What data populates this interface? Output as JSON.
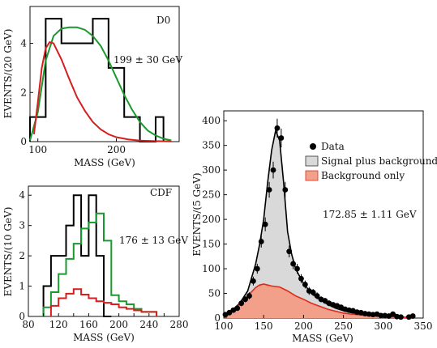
{
  "chart_data": [
    {
      "id": "d0",
      "type": "histogram",
      "panel_label": "D0",
      "annotation": "199 ± 30 GeV",
      "xlabel": "MASS (GeV)",
      "ylabel": "EVENTS/(20 GeV)",
      "xlim": [
        90,
        280
      ],
      "ylim": [
        0,
        5.5
      ],
      "xticks": [
        100,
        200
      ],
      "yticks": [
        0,
        2,
        4
      ],
      "series": [
        {
          "style": "histogram",
          "color": "#000000",
          "edges": [
            90,
            110,
            130,
            170,
            190,
            210,
            230,
            250,
            260
          ],
          "counts": [
            1,
            5,
            4,
            5,
            3,
            1,
            0,
            1
          ]
        },
        {
          "style": "curve",
          "color": "#1a9a2e",
          "x": [
            90,
            100,
            110,
            120,
            130,
            140,
            150,
            160,
            170,
            180,
            190,
            200,
            210,
            220,
            230,
            240,
            250,
            260,
            270
          ],
          "y": [
            0.05,
            1.2,
            3.3,
            4.3,
            4.6,
            4.65,
            4.65,
            4.55,
            4.3,
            3.9,
            3.3,
            2.6,
            1.9,
            1.3,
            0.8,
            0.45,
            0.25,
            0.12,
            0.05
          ]
        },
        {
          "style": "curve",
          "color": "#d51f1f",
          "x": [
            95,
            100,
            105,
            110,
            115,
            120,
            130,
            140,
            150,
            160,
            170,
            180,
            190,
            200,
            215,
            230,
            250,
            270
          ],
          "y": [
            0.3,
            1.6,
            3.0,
            3.8,
            4.05,
            4.0,
            3.35,
            2.55,
            1.8,
            1.25,
            0.8,
            0.5,
            0.3,
            0.18,
            0.09,
            0.04,
            0.02,
            0.01
          ]
        }
      ]
    },
    {
      "id": "cdf",
      "type": "histogram",
      "panel_label": "CDF",
      "annotation": "176 ± 13 GeV",
      "xlabel": "MASS (GeV)",
      "ylabel": "EVENTS/(10 GeV)",
      "xlim": [
        80,
        280
      ],
      "ylim": [
        0,
        4.3
      ],
      "xticks": [
        80,
        100,
        120,
        140,
        160,
        180,
        200,
        220,
        240,
        260,
        280
      ],
      "xtick_labels": [
        "80",
        "",
        "120",
        "",
        "160",
        "",
        "200",
        "",
        "240",
        "",
        "280"
      ],
      "yticks": [
        0,
        1,
        2,
        3,
        4
      ],
      "series": [
        {
          "style": "histogram",
          "color": "#000000",
          "edges": [
            100,
            110,
            120,
            130,
            140,
            150,
            160,
            170,
            180,
            190
          ],
          "counts": [
            1,
            2,
            2,
            3,
            4,
            2,
            4,
            2,
            0
          ]
        },
        {
          "style": "histogram",
          "color": "#1a9a2e",
          "edges": [
            100,
            110,
            120,
            130,
            140,
            150,
            160,
            170,
            180,
            190,
            200,
            210,
            220,
            230,
            250
          ],
          "counts": [
            0.3,
            0.8,
            1.4,
            1.9,
            2.4,
            2.9,
            3.1,
            3.4,
            2.5,
            0.7,
            0.5,
            0.4,
            0.25,
            0.15
          ]
        },
        {
          "style": "histogram",
          "color": "#d51f1f",
          "edges": [
            110,
            120,
            130,
            140,
            150,
            160,
            170,
            180,
            190,
            200,
            210,
            220,
            230,
            250
          ],
          "counts": [
            0.35,
            0.6,
            0.75,
            0.9,
            0.72,
            0.6,
            0.5,
            0.45,
            0.4,
            0.3,
            0.25,
            0.2,
            0.15
          ]
        }
      ]
    },
    {
      "id": "combined",
      "type": "scatter",
      "annotation": "172.85 ± 1.11 GeV",
      "xlabel": "MASS (GeV)",
      "ylabel": "EVENTS/(5 GeV)",
      "xlim": [
        100,
        350
      ],
      "ylim": [
        0,
        420
      ],
      "xticks": [
        100,
        150,
        200,
        250,
        300,
        350
      ],
      "yticks": [
        0,
        50,
        100,
        150,
        200,
        250,
        300,
        350,
        400
      ],
      "legend": [
        "Data",
        "Signal plus background",
        "Background only"
      ],
      "legend_position": "top-right",
      "series": [
        {
          "name": "Signal plus background",
          "style": "filled-area",
          "fill": "#d9d9d9",
          "stroke": "#000000",
          "x": [
            100,
            110,
            120,
            130,
            140,
            145,
            150,
            155,
            160,
            165,
            170,
            175,
            180,
            185,
            190,
            200,
            210,
            220,
            230,
            240,
            250,
            260,
            280,
            300,
            320,
            340
          ],
          "y": [
            5,
            15,
            30,
            55,
            110,
            150,
            200,
            275,
            340,
            380,
            360,
            275,
            175,
            130,
            100,
            70,
            50,
            38,
            28,
            20,
            15,
            11,
            6,
            3,
            2,
            1
          ]
        },
        {
          "name": "Background only",
          "style": "filled-area",
          "fill": "#f2a08a",
          "stroke": "#e02a1a",
          "x": [
            100,
            110,
            120,
            130,
            140,
            145,
            150,
            155,
            160,
            170,
            180,
            190,
            200,
            210,
            220,
            230,
            240,
            250,
            260,
            280,
            300,
            320,
            340
          ],
          "y": [
            5,
            14,
            28,
            45,
            62,
            67,
            69,
            67,
            65,
            63,
            55,
            45,
            38,
            30,
            24,
            18,
            14,
            10,
            8,
            5,
            3,
            2,
            1
          ]
        },
        {
          "name": "Data",
          "style": "points",
          "color": "#000000",
          "points": [
            [
              102,
              7,
              3
            ],
            [
              107,
              11,
              4
            ],
            [
              112,
              16,
              4
            ],
            [
              117,
              20,
              5
            ],
            [
              122,
              30,
              6
            ],
            [
              127,
              38,
              6
            ],
            [
              132,
              45,
              7
            ],
            [
              137,
              75,
              9
            ],
            [
              142,
              100,
              10
            ],
            [
              147,
              155,
              12
            ],
            [
              152,
              190,
              14
            ],
            [
              157,
              260,
              16
            ],
            [
              162,
              300,
              17
            ],
            [
              167,
              385,
              19
            ],
            [
              172,
              365,
              19
            ],
            [
              177,
              260,
              16
            ],
            [
              182,
              135,
              12
            ],
            [
              187,
              110,
              11
            ],
            [
              192,
              100,
              10
            ],
            [
              197,
              80,
              9
            ],
            [
              202,
              68,
              8
            ],
            [
              207,
              55,
              8
            ],
            [
              212,
              52,
              7
            ],
            [
              217,
              45,
              7
            ],
            [
              222,
              38,
              6
            ],
            [
              227,
              35,
              6
            ],
            [
              232,
              30,
              6
            ],
            [
              237,
              27,
              5
            ],
            [
              242,
              25,
              5
            ],
            [
              247,
              22,
              5
            ],
            [
              252,
              18,
              4
            ],
            [
              257,
              16,
              4
            ],
            [
              262,
              15,
              4
            ],
            [
              267,
              12,
              3
            ],
            [
              272,
              11,
              3
            ],
            [
              277,
              9,
              3
            ],
            [
              282,
              8,
              3
            ],
            [
              287,
              7,
              3
            ],
            [
              292,
              8,
              3
            ],
            [
              297,
              5,
              2
            ],
            [
              302,
              5,
              2
            ],
            [
              307,
              4,
              2
            ],
            [
              312,
              8,
              3
            ],
            [
              317,
              3,
              2
            ],
            [
              322,
              2,
              1
            ],
            [
              332,
              2,
              1
            ],
            [
              337,
              4,
              2
            ]
          ]
        }
      ]
    }
  ]
}
